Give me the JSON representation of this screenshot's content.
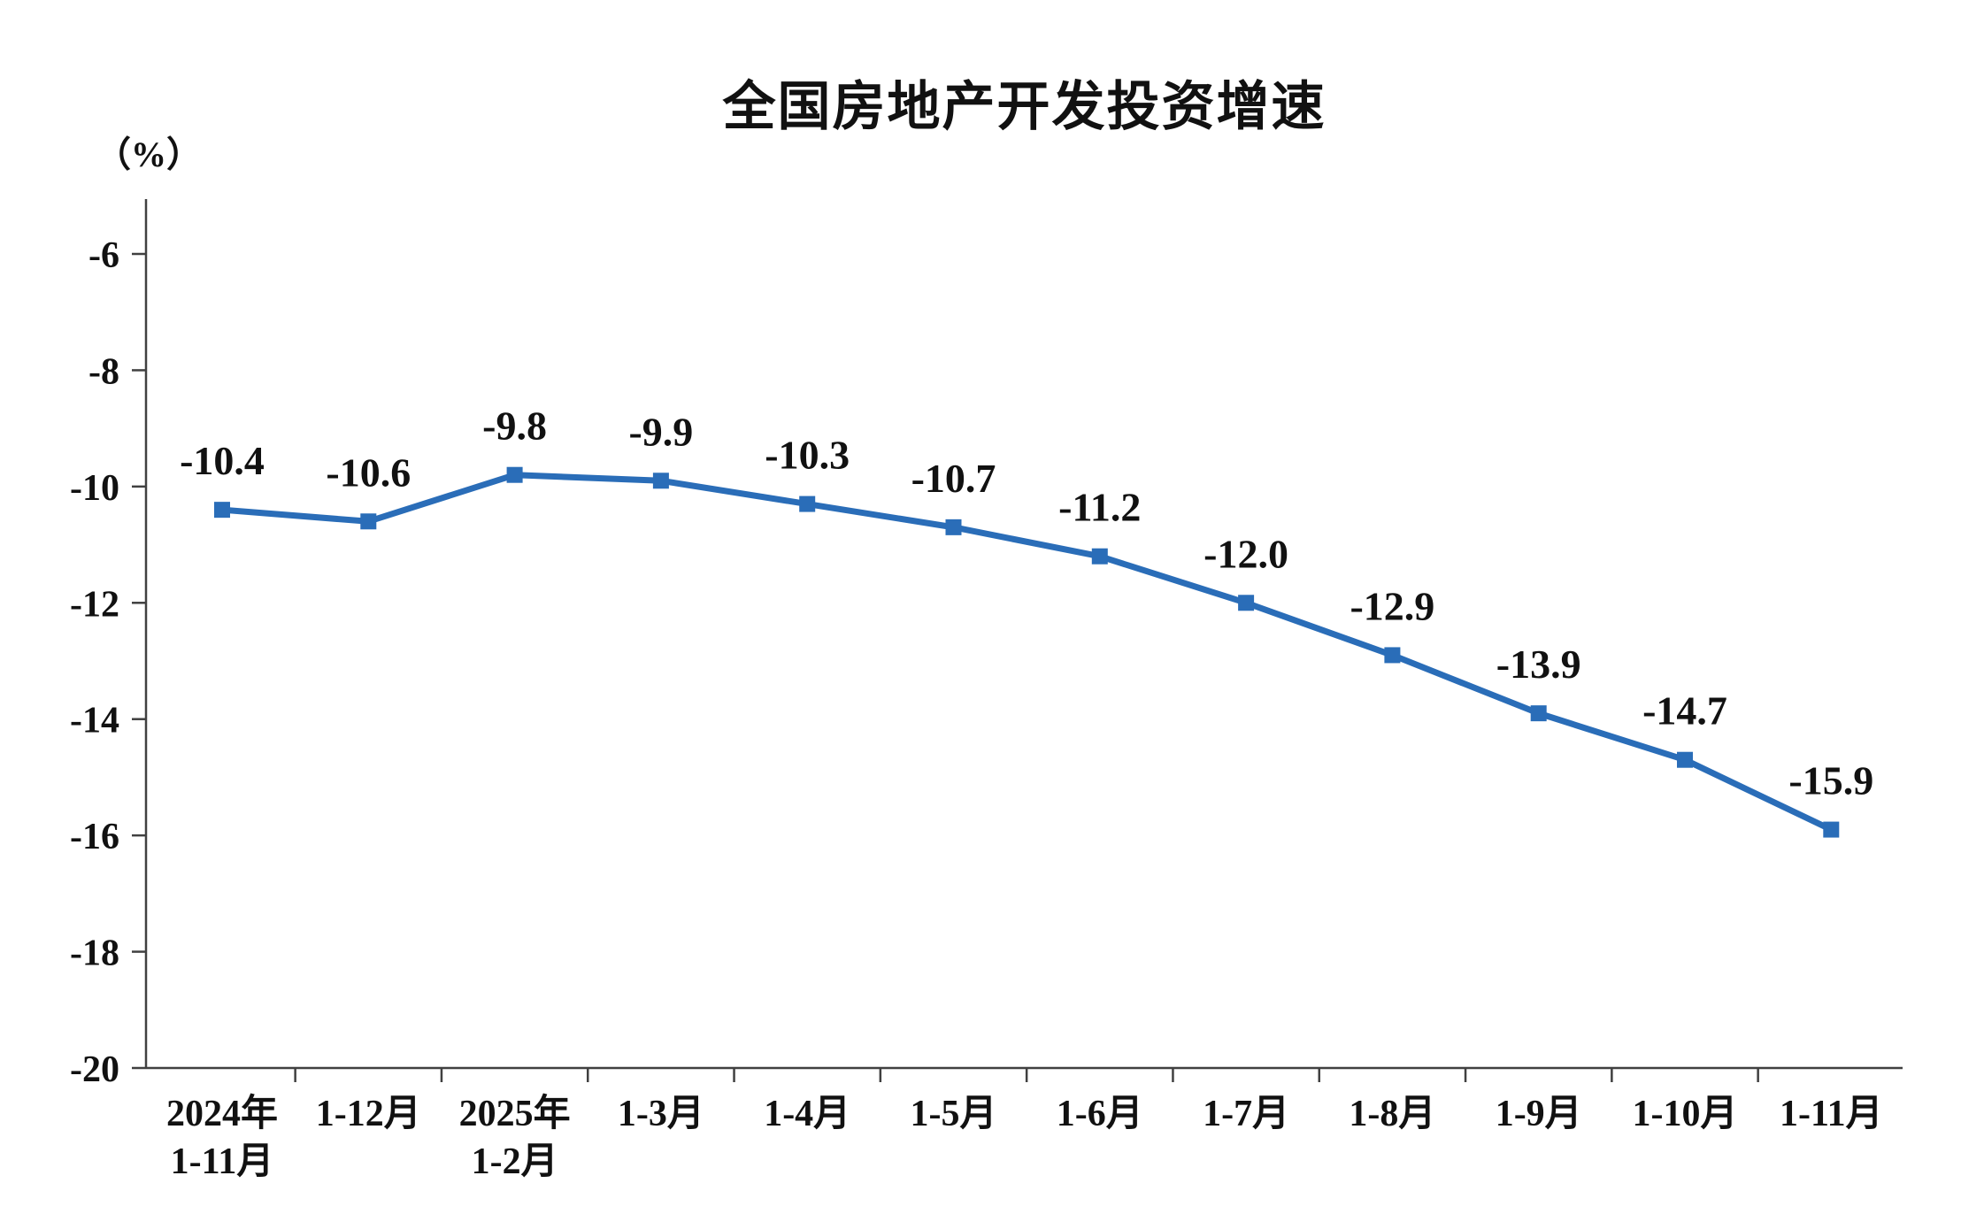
{
  "title": "全国房地产开发投资增速",
  "y_unit_label": "（%）",
  "chart_data": {
    "type": "line",
    "title": "全国房地产开发投资增速",
    "ylabel": "（%）",
    "categories": [
      [
        "2024年",
        "1-11月"
      ],
      [
        "1-12月"
      ],
      [
        "2025年",
        "1-2月"
      ],
      [
        "1-3月"
      ],
      [
        "1-4月"
      ],
      [
        "1-5月"
      ],
      [
        "1-6月"
      ],
      [
        "1-7月"
      ],
      [
        "1-8月"
      ],
      [
        "1-9月"
      ],
      [
        "1-10月"
      ],
      [
        "1-11月"
      ]
    ],
    "values": [
      -10.4,
      -10.6,
      -9.8,
      -9.9,
      -10.3,
      -10.7,
      -11.2,
      -12.0,
      -12.9,
      -13.9,
      -14.7,
      -15.9
    ],
    "data_labels": [
      "-10.4",
      "-10.6",
      "-9.8",
      "-9.9",
      "-10.3",
      "-10.7",
      "-11.2",
      "-12.0",
      "-12.9",
      "-13.9",
      "-14.7",
      "-15.9"
    ],
    "ylim": [
      -20,
      -6
    ],
    "yticks": [
      -6,
      -8,
      -10,
      -12,
      -14,
      -16,
      -18,
      -20
    ],
    "line_color": "#2A6DB8",
    "axis_color": "#404040",
    "marker": "square",
    "grid": false,
    "legend": false
  }
}
